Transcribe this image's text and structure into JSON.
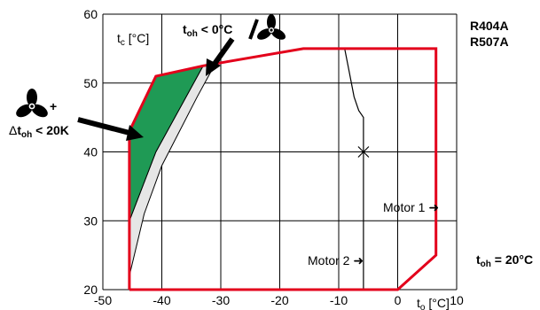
{
  "chart_data": {
    "type": "line",
    "title": "",
    "xlabel": "t",
    "xlabel_sub": "o",
    "xlabel_unit": " [°C]",
    "ylabel": "t",
    "ylabel_sub": "c",
    "ylabel_unit": " [°C]",
    "xlim": [
      -50,
      10
    ],
    "ylim": [
      20,
      60
    ],
    "x_ticks": [
      -50,
      -40,
      -30,
      -20,
      -10,
      0,
      10
    ],
    "y_ticks": [
      20,
      30,
      40,
      50,
      60
    ],
    "grid": true,
    "refrigerants": [
      "R404A",
      "R507A"
    ],
    "series": [
      {
        "kind": "envelope",
        "color": "#e3001b",
        "points": [
          [
            -45.5,
            20
          ],
          [
            0,
            20
          ],
          [
            6.5,
            25
          ],
          [
            6.5,
            55
          ],
          [
            -16,
            55
          ],
          [
            -33,
            52.5
          ],
          [
            -41,
            51
          ],
          [
            -45.5,
            43
          ],
          [
            -45.5,
            20
          ]
        ]
      },
      {
        "kind": "green-zone",
        "color": "#1f9a55",
        "points": [
          [
            -45.5,
            30
          ],
          [
            -45.5,
            43
          ],
          [
            -41,
            51
          ],
          [
            -33,
            52.5
          ],
          [
            -41,
            40
          ],
          [
            -45.5,
            30
          ]
        ]
      },
      {
        "kind": "grey-zone",
        "color": "#e6e6e6",
        "points": [
          [
            -45.5,
            30
          ],
          [
            -41,
            40
          ],
          [
            -33,
            52.5
          ],
          [
            -31,
            52.7
          ],
          [
            -34,
            48
          ],
          [
            -40,
            38
          ],
          [
            -43,
            31
          ],
          [
            -45.5,
            22
          ],
          [
            -45.5,
            30
          ]
        ]
      },
      {
        "kind": "motor-1-curve",
        "color": "#000000",
        "points": [
          [
            -9,
            55
          ],
          [
            -8.3,
            52
          ],
          [
            -7.4,
            48
          ],
          [
            -6.6,
            46
          ],
          [
            -5.8,
            45
          ],
          [
            -5.8,
            20
          ]
        ]
      }
    ],
    "annotations": {
      "toh_label_main": "t",
      "toh_label_sub": "oh",
      "toh_label_rest": " < 0°C",
      "delta_symbol": "Δ",
      "delta_t_main": "t",
      "delta_t_sub": "oh",
      "delta_t_rest": " < 20K",
      "plus": "+",
      "motor_1": "Motor 1 ➜",
      "motor_2": "Motor 2 ➜",
      "toh_right_main": "t",
      "toh_right_sub": "oh",
      "toh_right_rest": " = 20°C"
    }
  }
}
